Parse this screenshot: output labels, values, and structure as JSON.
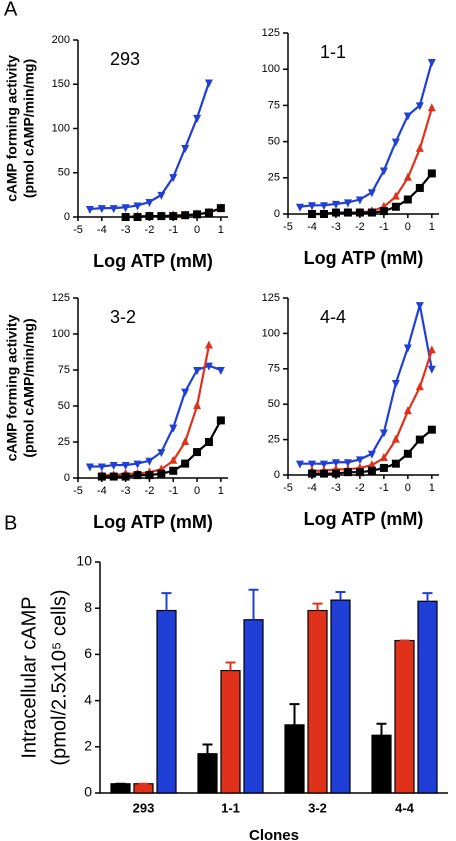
{
  "panel_labels": [
    "A",
    "B"
  ],
  "chart_data": [
    {
      "type": "line",
      "annotation": "293",
      "xlabel": "Log ATP (mM)",
      "ylabel": [
        "cAMP forming activity",
        "(pmol cAMP/min/mg)"
      ],
      "x": [
        -4.5,
        -4,
        -3.5,
        -3,
        -2.5,
        -2,
        -1.5,
        -1,
        -0.5,
        0,
        0.5,
        1
      ],
      "xlim": [
        -5,
        1.3
      ],
      "xticks": [
        -5,
        -4,
        -3,
        -2,
        -1,
        0,
        1
      ],
      "ylim": [
        0,
        200
      ],
      "yticks": [
        0,
        50,
        100,
        150,
        200
      ],
      "series": [
        {
          "color": "#1f3fd6",
          "marker": "triangle-down",
          "values": [
            9,
            10,
            10,
            11,
            13,
            17,
            25,
            45,
            78,
            112,
            152,
            null
          ]
        },
        {
          "color": "#e0321a",
          "marker": "triangle-up",
          "values": [
            null,
            null,
            null,
            0,
            1,
            1,
            1,
            2,
            2,
            3,
            5,
            10
          ]
        },
        {
          "color": "#000000",
          "marker": "square",
          "values": [
            null,
            null,
            null,
            0,
            0,
            1,
            1,
            1,
            2,
            3,
            5,
            10
          ]
        }
      ]
    },
    {
      "type": "line",
      "annotation": "1-1",
      "xlabel": "Log ATP (mM)",
      "x": [
        -4.5,
        -4,
        -3.5,
        -3,
        -2.5,
        -2,
        -1.5,
        -1,
        -0.5,
        0,
        0.5,
        1
      ],
      "xlim": [
        -5,
        1.3
      ],
      "xticks": [
        -5,
        -4,
        -3,
        -2,
        -1,
        0,
        1
      ],
      "ylim": [
        0,
        125
      ],
      "yticks": [
        0,
        25,
        50,
        75,
        100,
        125
      ],
      "series": [
        {
          "color": "#1f3fd6",
          "marker": "triangle-down",
          "values": [
            5,
            6,
            6,
            7,
            8,
            10,
            15,
            30,
            50,
            68,
            75,
            105
          ]
        },
        {
          "color": "#e0321a",
          "marker": "triangle-up",
          "values": [
            null,
            0,
            0,
            1,
            1,
            1,
            2,
            5,
            12,
            25,
            45,
            73
          ]
        },
        {
          "color": "#000000",
          "marker": "square",
          "values": [
            null,
            0,
            0,
            1,
            1,
            1,
            1,
            2,
            5,
            10,
            18,
            28
          ]
        }
      ]
    },
    {
      "type": "line",
      "annotation": "3-2",
      "xlabel": "Log ATP (mM)",
      "ylabel": [
        "cAMP forming activity",
        "(pmol cAMP/min/mg)"
      ],
      "x": [
        -4.5,
        -4,
        -3.5,
        -3,
        -2.5,
        -2,
        -1.5,
        -1,
        -0.5,
        0,
        0.5,
        1
      ],
      "xlim": [
        -5,
        1.3
      ],
      "xticks": [
        -5,
        -4,
        -3,
        -2,
        -1,
        0,
        1
      ],
      "ylim": [
        0,
        125
      ],
      "yticks": [
        0,
        25,
        50,
        75,
        100,
        125
      ],
      "series": [
        {
          "color": "#1f3fd6",
          "marker": "triangle-down",
          "values": [
            8,
            8,
            9,
            9,
            10,
            12,
            18,
            35,
            60,
            75,
            78,
            75
          ]
        },
        {
          "color": "#e0321a",
          "marker": "triangle-up",
          "values": [
            null,
            2,
            2,
            3,
            3,
            4,
            6,
            12,
            25,
            50,
            92,
            null
          ]
        },
        {
          "color": "#000000",
          "marker": "square",
          "values": [
            null,
            1,
            1,
            1,
            2,
            2,
            3,
            5,
            10,
            18,
            25,
            40
          ]
        }
      ]
    },
    {
      "type": "line",
      "annotation": "4-4",
      "xlabel": "Log ATP (mM)",
      "x": [
        -4.5,
        -4,
        -3.5,
        -3,
        -2.5,
        -2,
        -1.5,
        -1,
        -0.5,
        0,
        0.5,
        1
      ],
      "xlim": [
        -5,
        1.3
      ],
      "xticks": [
        -5,
        -4,
        -3,
        -2,
        -1,
        0,
        1
      ],
      "ylim": [
        0,
        125
      ],
      "yticks": [
        0,
        25,
        50,
        75,
        100,
        125
      ],
      "series": [
        {
          "color": "#1f3fd6",
          "marker": "triangle-down",
          "values": [
            8,
            8,
            8,
            9,
            9,
            11,
            15,
            30,
            65,
            90,
            120,
            75
          ]
        },
        {
          "color": "#e0321a",
          "marker": "triangle-up",
          "values": [
            null,
            3,
            3,
            4,
            4,
            5,
            7,
            12,
            25,
            45,
            62,
            88
          ]
        },
        {
          "color": "#000000",
          "marker": "square",
          "values": [
            null,
            1,
            1,
            1,
            2,
            2,
            3,
            5,
            8,
            15,
            25,
            32
          ]
        }
      ]
    },
    {
      "type": "bar",
      "xlabel": "Clones",
      "ylabel": [
        "Intracellular cAMP",
        "(pmol/2.5x10⁵ cells)"
      ],
      "categories": [
        "293",
        "1-1",
        "3-2",
        "4-4"
      ],
      "ylim": [
        0,
        10
      ],
      "yticks": [
        0,
        2,
        4,
        6,
        8,
        10
      ],
      "series": [
        {
          "color": "#000000",
          "values": [
            0.4,
            1.7,
            2.95,
            2.5
          ],
          "errors": [
            0,
            0.4,
            0.9,
            0.5
          ]
        },
        {
          "color": "#e0321a",
          "values": [
            0.4,
            5.3,
            7.9,
            6.6
          ],
          "errors": [
            0,
            0.35,
            0.3,
            0
          ]
        },
        {
          "color": "#1f3fd6",
          "values": [
            7.9,
            7.5,
            8.35,
            8.3
          ],
          "errors": [
            0.75,
            1.3,
            0.35,
            0.35
          ]
        }
      ]
    }
  ]
}
